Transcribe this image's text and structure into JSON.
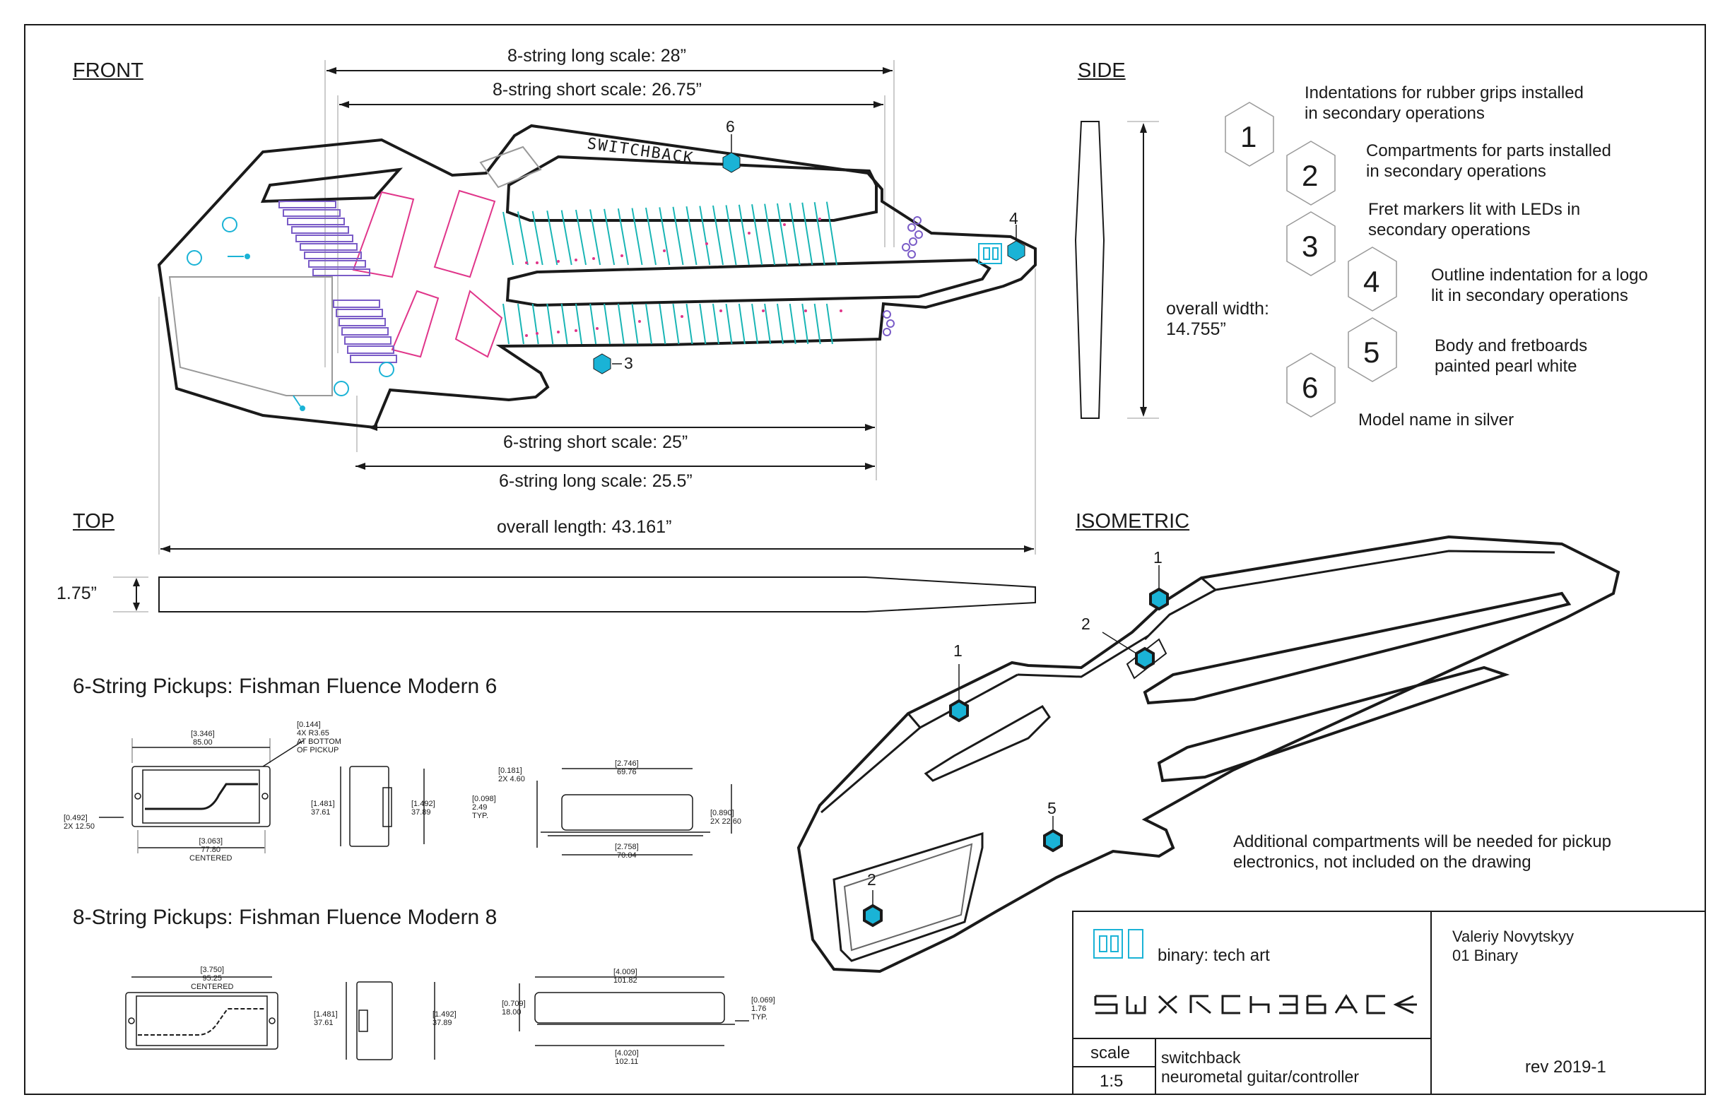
{
  "views": {
    "front": "FRONT",
    "side": "SIDE",
    "top": "TOP",
    "isometric": "ISOMETRIC"
  },
  "dimensions": {
    "eight_long": "8-string long scale: 28”",
    "eight_short": "8-string short scale: 26.75”",
    "six_short": "6-string short scale: 25”",
    "six_long": "6-string long scale: 25.5”",
    "overall_length": "overall length: 43.161”",
    "thickness": "1.75”",
    "overall_width": "overall width:",
    "overall_width_value": "14.755”"
  },
  "legend": [
    {
      "num": "1",
      "text1": "Indentations for rubber grips installed",
      "text2": "in secondary operations"
    },
    {
      "num": "2",
      "text1": "Compartments for parts installed",
      "text2": "in secondary operations"
    },
    {
      "num": "3",
      "text1": "Fret markers lit with LEDs in",
      "text2": "secondary operations"
    },
    {
      "num": "4",
      "text1": "Outline indentation for a logo",
      "text2": "lit in secondary operations"
    },
    {
      "num": "5",
      "text1": "Body and fretboards",
      "text2": "painted pearl white"
    },
    {
      "num": "6",
      "text1": "Model name in silver",
      "text2": ""
    }
  ],
  "callouts": {
    "front": [
      "6",
      "4",
      "3"
    ],
    "iso": [
      "1",
      "2",
      "1",
      "5",
      "2"
    ]
  },
  "pickups": {
    "six_title": "6-String Pickups: Fishman Fluence Modern 6",
    "eight_title": "8-String Pickups: Fishman Fluence Modern 8",
    "six_dims": {
      "width_in": "[3.346]",
      "width_mm": "85.00",
      "screw_in": "[0.144]",
      "screw_mm": "4X R3.65",
      "screw_note1": "AT BOTTOM",
      "screw_note2": "OF PICKUP",
      "edge_in": "[0.492]",
      "edge_mm": "2X 12.50",
      "center_in": "[3.063]",
      "center_mm": "77.80",
      "center_note": "CENTERED",
      "h1_in": "[1.481]",
      "h1_mm": "37.61",
      "h2_in": "[1.492]",
      "h2_mm": "37.89",
      "top_in": "[0.181]",
      "top_mm": "2X 4.60",
      "len_in": "[2.746]",
      "len_mm": "69.76",
      "base_in": "[0.098]",
      "base_mm": "2.49",
      "base_note": "TYP.",
      "ht_in": "[0.890]",
      "ht_mm": "2X 22.60",
      "bot_in": "[2.758]",
      "bot_mm": "70.04"
    },
    "eight_dims": {
      "width_in": "[3.750]",
      "width_mm": "95.25",
      "width_note": "CENTERED",
      "h1_in": "[1.481]",
      "h1_mm": "37.61",
      "h2_in": "[1.492]",
      "h2_mm": "37.89",
      "len_in": "[4.009]",
      "len_mm": "101.82",
      "ht_in": "[0.709]",
      "ht_mm": "18.00",
      "side_in": "[0.069]",
      "side_mm": "1.76",
      "side_note": "TYP.",
      "bot_in": "[4.020]",
      "bot_mm": "102.11"
    }
  },
  "notes": {
    "compartments_1": "Additional compartments will be needed for pickup",
    "compartments_2": "electronics, not included on the drawing"
  },
  "title_block": {
    "company": "binary: tech art",
    "author": "Valeriy Novytskyy",
    "org": "01 Binary",
    "scale_label": "scale",
    "scale_value": "1:5",
    "project": "switchback",
    "description": "neurometal guitar/controller",
    "revision": "rev 2019-1"
  },
  "colors": {
    "accent": "#1ab3d6",
    "frets": "#19b5b5",
    "magenta": "#e0358a",
    "purple": "#7a5cc7",
    "line": "#1a1a1a"
  }
}
